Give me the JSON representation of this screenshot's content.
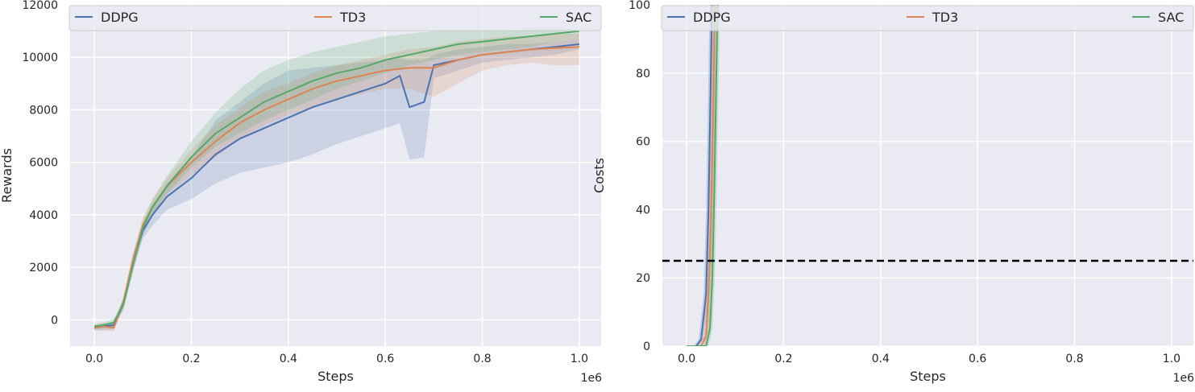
{
  "chart_data": [
    {
      "type": "line",
      "xlabel": "Steps",
      "ylabel": "Rewards",
      "x_offset_label": "1e6",
      "xlim": [
        -0.05,
        1.045
      ],
      "ylim": [
        -1000,
        12000
      ],
      "xticks": [
        0.0,
        0.2,
        0.4,
        0.6,
        0.8,
        1.0
      ],
      "xtick_labels": [
        "0.0",
        "0.2",
        "0.4",
        "0.6",
        "0.8",
        "1.0"
      ],
      "yticks": [
        0,
        2000,
        4000,
        6000,
        8000,
        10000,
        12000
      ],
      "ytick_labels": [
        "0",
        "2000",
        "4000",
        "6000",
        "8000",
        "10000",
        "12000"
      ],
      "grid": true,
      "legend_position": "top",
      "series": [
        {
          "name": "DDPG",
          "color": "#4c72b0",
          "x": [
            0.0,
            0.02,
            0.04,
            0.06,
            0.08,
            0.1,
            0.12,
            0.15,
            0.2,
            0.25,
            0.3,
            0.35,
            0.4,
            0.45,
            0.5,
            0.55,
            0.6,
            0.63,
            0.65,
            0.68,
            0.7,
            0.75,
            0.8,
            0.85,
            0.9,
            0.95,
            1.0
          ],
          "values": [
            -300,
            -250,
            -200,
            600,
            2200,
            3400,
            4000,
            4700,
            5400,
            6300,
            6900,
            7300,
            7700,
            8100,
            8400,
            8700,
            9000,
            9300,
            8100,
            8300,
            9700,
            9900,
            10100,
            10200,
            10300,
            10400,
            10500
          ],
          "lower": [
            -400,
            -400,
            -350,
            400,
            1900,
            3100,
            3600,
            4200,
            4600,
            5200,
            5600,
            5800,
            6000,
            6300,
            6700,
            7000,
            7300,
            7500,
            6100,
            6200,
            9200,
            9500,
            9800,
            9900,
            10000,
            10100,
            10300
          ],
          "upper": [
            -200,
            -150,
            -100,
            800,
            2500,
            3700,
            4400,
            5200,
            6200,
            7600,
            8300,
            9000,
            9500,
            9600,
            9700,
            9800,
            9900,
            9950,
            9900,
            9900,
            10100,
            10300,
            10400,
            10500,
            10500,
            10600,
            10700
          ]
        },
        {
          "name": "TD3",
          "color": "#dd8452",
          "x": [
            0.0,
            0.02,
            0.04,
            0.06,
            0.08,
            0.1,
            0.12,
            0.15,
            0.2,
            0.25,
            0.3,
            0.35,
            0.4,
            0.45,
            0.5,
            0.55,
            0.6,
            0.65,
            0.7,
            0.75,
            0.8,
            0.85,
            0.9,
            0.95,
            1.0
          ],
          "values": [
            -300,
            -250,
            -300,
            700,
            2300,
            3600,
            4300,
            5100,
            6000,
            6800,
            7500,
            8000,
            8400,
            8800,
            9100,
            9300,
            9500,
            9600,
            9600,
            9900,
            10100,
            10200,
            10300,
            10350,
            10400
          ],
          "lower": [
            -400,
            -400,
            -450,
            500,
            2000,
            3300,
            4000,
            4800,
            5500,
            6200,
            6900,
            7400,
            7800,
            8100,
            8400,
            8600,
            8800,
            8800,
            8500,
            9000,
            9500,
            9700,
            9800,
            9700,
            9700
          ],
          "upper": [
            -200,
            -100,
            -150,
            900,
            2600,
            3900,
            4600,
            5400,
            6500,
            7400,
            8100,
            8700,
            9000,
            9400,
            9700,
            9900,
            10100,
            10300,
            10400,
            10600,
            10700,
            10800,
            10800,
            10900,
            10900
          ]
        },
        {
          "name": "SAC",
          "color": "#55a868",
          "x": [
            0.0,
            0.02,
            0.04,
            0.06,
            0.08,
            0.1,
            0.12,
            0.15,
            0.2,
            0.25,
            0.3,
            0.35,
            0.4,
            0.45,
            0.5,
            0.55,
            0.6,
            0.65,
            0.7,
            0.75,
            0.8,
            0.85,
            0.9,
            0.95,
            1.0
          ],
          "values": [
            -250,
            -200,
            -100,
            600,
            2100,
            3500,
            4300,
            5100,
            6200,
            7100,
            7700,
            8300,
            8700,
            9100,
            9400,
            9600,
            9900,
            10100,
            10300,
            10500,
            10600,
            10700,
            10800,
            10900,
            11000
          ],
          "lower": [
            -350,
            -300,
            -250,
            400,
            1800,
            3200,
            4000,
            4800,
            5800,
            6600,
            7100,
            7600,
            8000,
            8400,
            8800,
            9100,
            9400,
            9700,
            9900,
            10100,
            10200,
            10300,
            10400,
            10600,
            10700
          ],
          "upper": [
            -150,
            -100,
            50,
            800,
            2400,
            3800,
            4600,
            5500,
            6800,
            7900,
            8800,
            9500,
            9900,
            10200,
            10400,
            10600,
            10800,
            10900,
            11000,
            11000,
            11000,
            11050,
            11100,
            11100,
            11100
          ]
        }
      ]
    },
    {
      "type": "line",
      "xlabel": "Steps",
      "ylabel": "Costs",
      "x_offset_label": "1e6",
      "xlim": [
        -0.05,
        1.045
      ],
      "ylim": [
        0,
        100
      ],
      "xticks": [
        0.0,
        0.2,
        0.4,
        0.6,
        0.8,
        1.0
      ],
      "xtick_labels": [
        "0.0",
        "0.2",
        "0.4",
        "0.6",
        "0.8",
        "1.0"
      ],
      "yticks": [
        0,
        20,
        40,
        60,
        80,
        100
      ],
      "ytick_labels": [
        "0",
        "20",
        "40",
        "60",
        "80",
        "100"
      ],
      "grid": true,
      "legend_position": "top",
      "threshold": 25,
      "threshold_color": "#000000",
      "series": [
        {
          "name": "DDPG",
          "color": "#4c72b0",
          "x": [
            0.0,
            0.02,
            0.03,
            0.04,
            0.045,
            0.05,
            0.055
          ],
          "values": [
            0,
            0,
            2,
            15,
            40,
            80,
            130
          ]
        },
        {
          "name": "TD3",
          "color": "#dd8452",
          "x": [
            0.0,
            0.03,
            0.04,
            0.045,
            0.05,
            0.055,
            0.06
          ],
          "values": [
            0,
            0,
            3,
            15,
            35,
            70,
            120
          ]
        },
        {
          "name": "SAC",
          "color": "#55a868",
          "x": [
            0.0,
            0.04,
            0.048,
            0.053,
            0.057,
            0.062,
            0.068
          ],
          "values": [
            0,
            0,
            5,
            20,
            45,
            85,
            130
          ]
        }
      ]
    }
  ]
}
